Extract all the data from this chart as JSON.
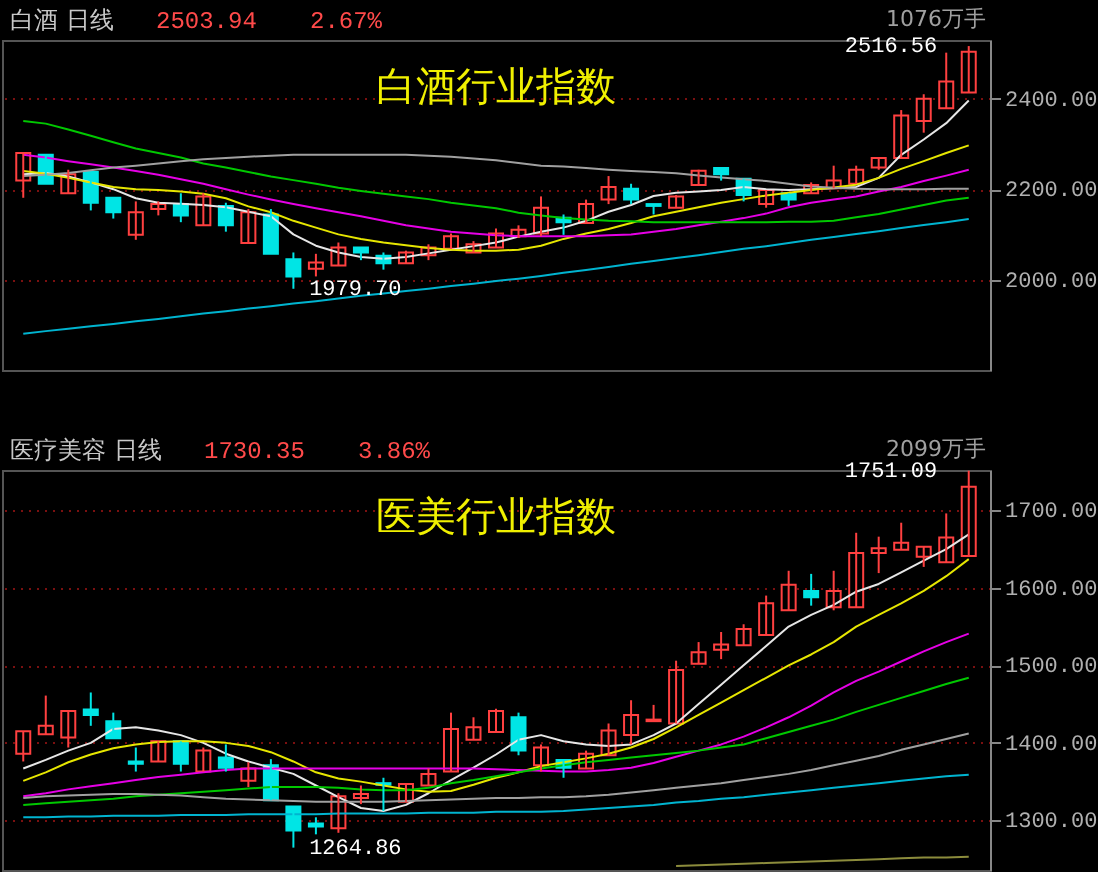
{
  "chart_data": [
    {
      "type": "candlestick",
      "title": "白酒行业指数",
      "annotations": [
        "白酒 日线",
        "2503.94",
        "2.67%",
        "1076万手",
        "2516.56",
        "1979.70"
      ],
      "categories": [
        null,
        null,
        null,
        null,
        null,
        null,
        null,
        null,
        null,
        null,
        null,
        null,
        null,
        null,
        null,
        null,
        null,
        null,
        null,
        null,
        null,
        null,
        null,
        null,
        null,
        null,
        null,
        null,
        null,
        null,
        null,
        null,
        null,
        null,
        null,
        null,
        null,
        null,
        null,
        null,
        null,
        null,
        null
      ],
      "ohlc": [
        [
          2219,
          2280,
          2181,
          2280
        ],
        [
          2276,
          2276,
          2212,
          2212
        ],
        [
          2191,
          2243,
          2191,
          2233
        ],
        [
          2238,
          2238,
          2153,
          2170
        ],
        [
          2181,
          2181,
          2135,
          2149
        ],
        [
          2099,
          2173,
          2088,
          2149
        ],
        [
          2156,
          2173,
          2142,
          2167
        ],
        [
          2167,
          2191,
          2127,
          2142
        ],
        [
          2120,
          2191,
          2120,
          2184
        ],
        [
          2163,
          2170,
          2106,
          2120
        ],
        [
          2081,
          2156,
          2081,
          2149
        ],
        [
          2144,
          2156,
          2057,
          2057
        ],
        [
          2045,
          2060,
          1979.7,
          2007
        ],
        [
          2024,
          2057,
          2007,
          2038
        ],
        [
          2031,
          2082,
          2031,
          2071
        ],
        [
          2071,
          2071,
          2043,
          2060
        ],
        [
          2053,
          2060,
          2022,
          2036
        ],
        [
          2036,
          2064,
          2036,
          2060
        ],
        [
          2054,
          2078,
          2043,
          2071
        ],
        [
          2068,
          2102,
          2068,
          2096
        ],
        [
          2060,
          2085,
          2060,
          2078
        ],
        [
          2071,
          2113,
          2071,
          2102
        ],
        [
          2096,
          2120,
          2092,
          2110
        ],
        [
          2102,
          2184,
          2096,
          2159
        ],
        [
          2137,
          2144,
          2099,
          2127
        ],
        [
          2125,
          2177,
          2125,
          2167
        ],
        [
          2177,
          2229,
          2167,
          2205
        ],
        [
          2201,
          2212,
          2167,
          2177
        ],
        [
          2167,
          2167,
          2144,
          2163
        ],
        [
          2159,
          2187,
          2159,
          2184
        ],
        [
          2209,
          2243,
          2209,
          2241
        ],
        [
          2247,
          2247,
          2219,
          2233
        ],
        [
          2223,
          2223,
          2173,
          2187
        ],
        [
          2167,
          2198,
          2159,
          2198
        ],
        [
          2191,
          2191,
          2163,
          2177
        ],
        [
          2191,
          2215,
          2191,
          2209
        ],
        [
          2202,
          2252,
          2202,
          2219
        ],
        [
          2212,
          2252,
          2212,
          2243
        ],
        [
          2248,
          2269,
          2243,
          2269
        ],
        [
          2269,
          2375,
          2269,
          2363
        ],
        [
          2351,
          2410,
          2325,
          2400
        ],
        [
          2379,
          2502,
          2379,
          2438
        ],
        [
          2414,
          2516.56,
          2414,
          2503.94
        ]
      ],
      "colors": [
        "#ff4040",
        "#00e5e5",
        "#ff4040",
        "#00e5e5",
        "#00e5e5",
        "#ff4040",
        "#ff4040",
        "#00e5e5",
        "#ff4040",
        "#00e5e5",
        "#ff4040",
        "#00e5e5",
        "#00e5e5",
        "#ff4040",
        "#ff4040",
        "#00e5e5",
        "#00e5e5",
        "#ff4040",
        "#ff4040",
        "#ff4040",
        "#ff4040",
        "#ff4040",
        "#ff4040",
        "#ff4040",
        "#00e5e5",
        "#ff4040",
        "#ff4040",
        "#00e5e5",
        "#00e5e5",
        "#ff4040",
        "#ff4040",
        "#00e5e5",
        "#00e5e5",
        "#ff4040",
        "#00e5e5",
        "#ff4040",
        "#ff4040",
        "#ff4040",
        "#ff4040",
        "#ff4040",
        "#ff4040",
        "#ff4040",
        "#ff4040"
      ],
      "series": [
        {
          "type": "line",
          "color": "#e6e6e6",
          "values": [
            2233,
            2236,
            2228,
            2215,
            2200,
            2180,
            2170,
            2168,
            2165,
            2160,
            2150,
            2140,
            2100,
            2075,
            2060,
            2050,
            2046,
            2050,
            2058,
            2066,
            2074,
            2082,
            2095,
            2106,
            2115,
            2130,
            2150,
            2165,
            2185,
            2192,
            2195,
            2198,
            2205,
            2200,
            2198,
            2200,
            2202,
            2205,
            2225,
            2276,
            2310,
            2346,
            2396
          ]
        },
        {
          "type": "line",
          "color": "#e6e600",
          "values": [
            2240,
            2234,
            2225,
            2215,
            2205,
            2200,
            2198,
            2195,
            2190,
            2180,
            2162,
            2149,
            2130,
            2115,
            2100,
            2090,
            2082,
            2076,
            2070,
            2066,
            2064,
            2064,
            2066,
            2075,
            2090,
            2102,
            2112,
            2125,
            2140,
            2150,
            2160,
            2170,
            2178,
            2186,
            2192,
            2198,
            2204,
            2210,
            2225,
            2245,
            2262,
            2280,
            2297
          ]
        },
        {
          "type": "line",
          "color": "#e600e6",
          "values": [
            2276,
            2270,
            2262,
            2255,
            2248,
            2240,
            2232,
            2222,
            2212,
            2200,
            2188,
            2177,
            2167,
            2158,
            2149,
            2140,
            2130,
            2120,
            2113,
            2106,
            2102,
            2098,
            2096,
            2096,
            2096,
            2096,
            2098,
            2100,
            2106,
            2112,
            2120,
            2128,
            2136,
            2146,
            2160,
            2170,
            2177,
            2184,
            2195,
            2205,
            2218,
            2230,
            2243
          ]
        },
        {
          "type": "line",
          "color": "#00c800",
          "values": [
            2351,
            2345,
            2332,
            2318,
            2304,
            2290,
            2280,
            2270,
            2257,
            2248,
            2238,
            2228,
            2220,
            2212,
            2203,
            2196,
            2190,
            2184,
            2178,
            2170,
            2164,
            2158,
            2148,
            2142,
            2136,
            2133,
            2130,
            2129,
            2127,
            2127,
            2127,
            2127,
            2127,
            2127,
            2128,
            2128,
            2130,
            2138,
            2145,
            2155,
            2165,
            2175,
            2181
          ]
        },
        {
          "type": "line",
          "color": "#a0a0a0",
          "values": [
            2229,
            2232,
            2236,
            2242,
            2248,
            2252,
            2257,
            2262,
            2266,
            2269,
            2272,
            2274,
            2276,
            2276,
            2276,
            2276,
            2276,
            2276,
            2274,
            2272,
            2268,
            2264,
            2258,
            2252,
            2250,
            2247,
            2243,
            2240,
            2238,
            2235,
            2230,
            2226,
            2222,
            2218,
            2212,
            2206,
            2203,
            2201,
            2200,
            2200,
            2200,
            2201,
            2201
          ]
        },
        {
          "type": "line",
          "color": "#00b4d0",
          "values": [
            1880,
            1886,
            1891,
            1897,
            1902,
            1908,
            1913,
            1919,
            1925,
            1930,
            1936,
            1941,
            1947,
            1952,
            1958,
            1964,
            1969,
            1975,
            1980,
            1986,
            1991,
            1997,
            2002,
            2008,
            2015,
            2021,
            2028,
            2035,
            2041,
            2048,
            2054,
            2061,
            2068,
            2074,
            2081,
            2088,
            2094,
            2101,
            2107,
            2114,
            2121,
            2127,
            2134
          ]
        }
      ],
      "ylim": [
        1800,
        2530
      ],
      "yticks": [
        {
          "value": 2000,
          "label": "2000.00"
        },
        {
          "value": 2200,
          "label": "2200.00"
        },
        {
          "value": 2400,
          "label": "2400.00"
        }
      ],
      "grid": "y",
      "tick_labels": "y"
    },
    {
      "type": "candlestick",
      "title": "医美行业指数",
      "annotations": [
        "医疗美容 日线",
        "1730.35",
        "3.86%",
        "2099万手",
        "1751.09",
        "1264.86"
      ],
      "categories": [
        null,
        null,
        null,
        null,
        null,
        null,
        null,
        null,
        null,
        null,
        null,
        null,
        null,
        null,
        null,
        null,
        null,
        null,
        null,
        null,
        null,
        null,
        null,
        null,
        null,
        null,
        null,
        null,
        null,
        null,
        null,
        null,
        null,
        null,
        null,
        null,
        null,
        null,
        null,
        null,
        null,
        null,
        null
      ],
      "ohlc": [
        [
          1386,
          1415,
          1376,
          1415
        ],
        [
          1411,
          1461,
          1411,
          1422
        ],
        [
          1407,
          1441,
          1394,
          1441
        ],
        [
          1443,
          1465,
          1422,
          1436
        ],
        [
          1428,
          1439,
          1406,
          1406
        ],
        [
          1376,
          1394,
          1363,
          1373
        ],
        [
          1376,
          1402,
          1376,
          1402
        ],
        [
          1402,
          1402,
          1363,
          1373
        ],
        [
          1363,
          1394,
          1363,
          1390
        ],
        [
          1381,
          1398,
          1363,
          1368
        ],
        [
          1351,
          1375,
          1343,
          1367
        ],
        [
          1371,
          1379,
          1326,
          1326
        ],
        [
          1318,
          1318,
          1264.86,
          1287
        ],
        [
          1296,
          1304,
          1282,
          1292
        ],
        [
          1290,
          1335,
          1284,
          1331
        ],
        [
          1329,
          1345,
          1321,
          1334
        ],
        [
          1348,
          1355,
          1312,
          1346
        ],
        [
          1324,
          1347,
          1324,
          1347
        ],
        [
          1345,
          1367,
          1345,
          1360
        ],
        [
          1363,
          1439,
          1363,
          1418
        ],
        [
          1404,
          1433,
          1404,
          1420
        ],
        [
          1414,
          1444,
          1414,
          1441
        ],
        [
          1433,
          1439,
          1384,
          1390
        ],
        [
          1371,
          1398,
          1363,
          1394
        ],
        [
          1378,
          1378,
          1355,
          1368
        ],
        [
          1367,
          1390,
          1367,
          1386
        ],
        [
          1384,
          1425,
          1384,
          1416
        ],
        [
          1410,
          1455,
          1398,
          1436
        ],
        [
          1428,
          1449,
          1428,
          1430
        ],
        [
          1425,
          1506,
          1425,
          1494
        ],
        [
          1502,
          1530,
          1502,
          1517
        ],
        [
          1520,
          1543,
          1508,
          1527
        ],
        [
          1526,
          1553,
          1526,
          1547
        ],
        [
          1539,
          1590,
          1539,
          1580
        ],
        [
          1571,
          1622,
          1571,
          1604
        ],
        [
          1596,
          1618,
          1577,
          1588
        ],
        [
          1575,
          1622,
          1571,
          1596
        ],
        [
          1575,
          1671,
          1575,
          1645
        ],
        [
          1645,
          1666,
          1619,
          1651
        ],
        [
          1649,
          1684,
          1649,
          1658
        ],
        [
          1640,
          1653,
          1627,
          1653
        ],
        [
          1633,
          1696,
          1633,
          1665
        ],
        [
          1641,
          1751.09,
          1641,
          1730.35
        ]
      ],
      "colors": [
        "#ff4040",
        "#ff4040",
        "#ff4040",
        "#00e5e5",
        "#00e5e5",
        "#00e5e5",
        "#ff4040",
        "#00e5e5",
        "#ff4040",
        "#00e5e5",
        "#ff4040",
        "#00e5e5",
        "#00e5e5",
        "#00e5e5",
        "#ff4040",
        "#ff4040",
        "#00e5e5",
        "#ff4040",
        "#ff4040",
        "#ff4040",
        "#ff4040",
        "#ff4040",
        "#00e5e5",
        "#ff4040",
        "#00e5e5",
        "#ff4040",
        "#ff4040",
        "#ff4040",
        "#ff4040",
        "#ff4040",
        "#ff4040",
        "#ff4040",
        "#ff4040",
        "#ff4040",
        "#ff4040",
        "#00e5e5",
        "#ff4040",
        "#ff4040",
        "#ff4040",
        "#ff4040",
        "#ff4040",
        "#ff4040",
        "#ff4040"
      ],
      "series": [
        {
          "type": "line",
          "color": "#e6e6e6",
          "values": [
            1367,
            1378,
            1390,
            1400,
            1418,
            1420,
            1416,
            1410,
            1400,
            1386,
            1376,
            1368,
            1360,
            1345,
            1330,
            1316,
            1312,
            1320,
            1335,
            1352,
            1368,
            1385,
            1404,
            1410,
            1402,
            1398,
            1396,
            1398,
            1410,
            1425,
            1450,
            1475,
            1500,
            1525,
            1550,
            1565,
            1578,
            1595,
            1605,
            1620,
            1635,
            1650,
            1669
          ]
        },
        {
          "type": "line",
          "color": "#e6e600",
          "values": [
            1351,
            1362,
            1375,
            1385,
            1393,
            1398,
            1401,
            1402,
            1402,
            1400,
            1396,
            1388,
            1376,
            1362,
            1354,
            1350,
            1345,
            1340,
            1337,
            1338,
            1346,
            1355,
            1362,
            1370,
            1375,
            1380,
            1386,
            1394,
            1405,
            1420,
            1436,
            1452,
            1468,
            1484,
            1500,
            1514,
            1530,
            1550,
            1565,
            1580,
            1596,
            1615,
            1637
          ]
        },
        {
          "type": "line",
          "color": "#e600e6",
          "values": [
            1331,
            1335,
            1340,
            1344,
            1348,
            1352,
            1356,
            1359,
            1362,
            1365,
            1367,
            1367,
            1367,
            1367,
            1367,
            1367,
            1367,
            1367,
            1367,
            1367,
            1367,
            1366,
            1365,
            1364,
            1363,
            1363,
            1365,
            1368,
            1374,
            1382,
            1390,
            1398,
            1408,
            1420,
            1433,
            1448,
            1465,
            1480,
            1492,
            1505,
            1518,
            1530,
            1541
          ]
        },
        {
          "type": "line",
          "color": "#00c800",
          "values": [
            1320,
            1322,
            1324,
            1326,
            1328,
            1331,
            1333,
            1335,
            1337,
            1339,
            1341,
            1343,
            1343,
            1343,
            1342,
            1340,
            1339,
            1339,
            1342,
            1348,
            1352,
            1357,
            1362,
            1367,
            1371,
            1375,
            1378,
            1381,
            1384,
            1387,
            1390,
            1394,
            1398,
            1406,
            1414,
            1422,
            1430,
            1440,
            1449,
            1458,
            1467,
            1476,
            1484
          ]
        },
        {
          "type": "line",
          "color": "#a0a0a0",
          "values": [
            1329,
            1331,
            1332,
            1333,
            1334,
            1334,
            1333,
            1332,
            1330,
            1328,
            1327,
            1326,
            1325,
            1324,
            1324,
            1324,
            1324,
            1325,
            1326,
            1327,
            1328,
            1329,
            1329,
            1330,
            1330,
            1331,
            1333,
            1336,
            1339,
            1342,
            1345,
            1348,
            1352,
            1356,
            1360,
            1365,
            1371,
            1377,
            1383,
            1391,
            1398,
            1405,
            1412
          ]
        },
        {
          "type": "line",
          "color": "#00b4d0",
          "values": [
            1304,
            1304,
            1305,
            1305,
            1306,
            1306,
            1306,
            1307,
            1307,
            1307,
            1308,
            1308,
            1308,
            1308,
            1309,
            1309,
            1309,
            1309,
            1310,
            1310,
            1310,
            1311,
            1311,
            1311,
            1312,
            1314,
            1316,
            1318,
            1320,
            1323,
            1325,
            1328,
            1330,
            1333,
            1336,
            1339,
            1342,
            1345,
            1348,
            1351,
            1354,
            1357,
            1359
          ]
        },
        {
          "type": "line",
          "color": "#8c8c3c",
          "values": [
            null,
            null,
            null,
            null,
            null,
            null,
            null,
            null,
            null,
            null,
            null,
            null,
            null,
            null,
            null,
            null,
            null,
            null,
            null,
            null,
            null,
            null,
            null,
            null,
            null,
            null,
            null,
            null,
            null,
            1241,
            1242,
            1243,
            1244,
            1245,
            1246,
            1247,
            1248,
            1249,
            1250,
            1251,
            1252,
            1252,
            1253
          ]
        }
      ],
      "ylim": [
        1236,
        1752
      ],
      "yticks": [
        {
          "value": 1300,
          "label": "1300.00"
        },
        {
          "value": 1400,
          "label": "1400.00"
        },
        {
          "value": 1500,
          "label": "1500.00"
        },
        {
          "value": 1600,
          "label": "1600.00"
        },
        {
          "value": 1700,
          "label": "1700.00"
        }
      ],
      "grid": "y",
      "tick_labels": "y"
    }
  ]
}
